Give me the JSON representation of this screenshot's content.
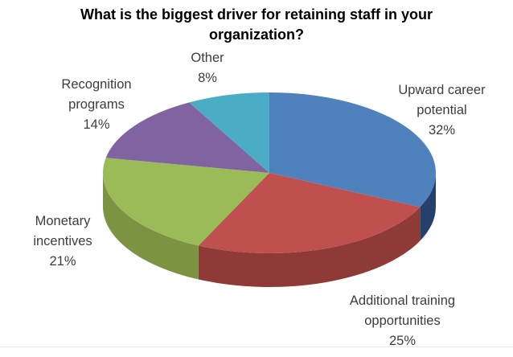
{
  "title": "What is the biggest driver for retaining staff in your organization?",
  "chart_data": {
    "type": "pie",
    "title": "What is the biggest driver for retaining staff in your organization?",
    "is_3d": true,
    "start_angle_deg_from_top_clockwise": 0,
    "labels": [
      "Upward career potential",
      "Additional training opportunities",
      "Monetary incentives",
      "Recognition programs",
      "Other"
    ],
    "values": [
      32,
      25,
      21,
      14,
      8
    ],
    "value_labels": [
      "32%",
      "25%",
      "21%",
      "14%",
      "8%"
    ],
    "colors": [
      "#4f81bd",
      "#c0504d",
      "#9bbb59",
      "#8064a2",
      "#4bacc6"
    ],
    "side_colors": [
      "#24406b",
      "#8e3a37",
      "#7c9441",
      "#5c4878",
      "#2f7e95"
    ],
    "legend_position": "callout-labels-around-pie",
    "label_text_color": "#3d3d3d"
  }
}
